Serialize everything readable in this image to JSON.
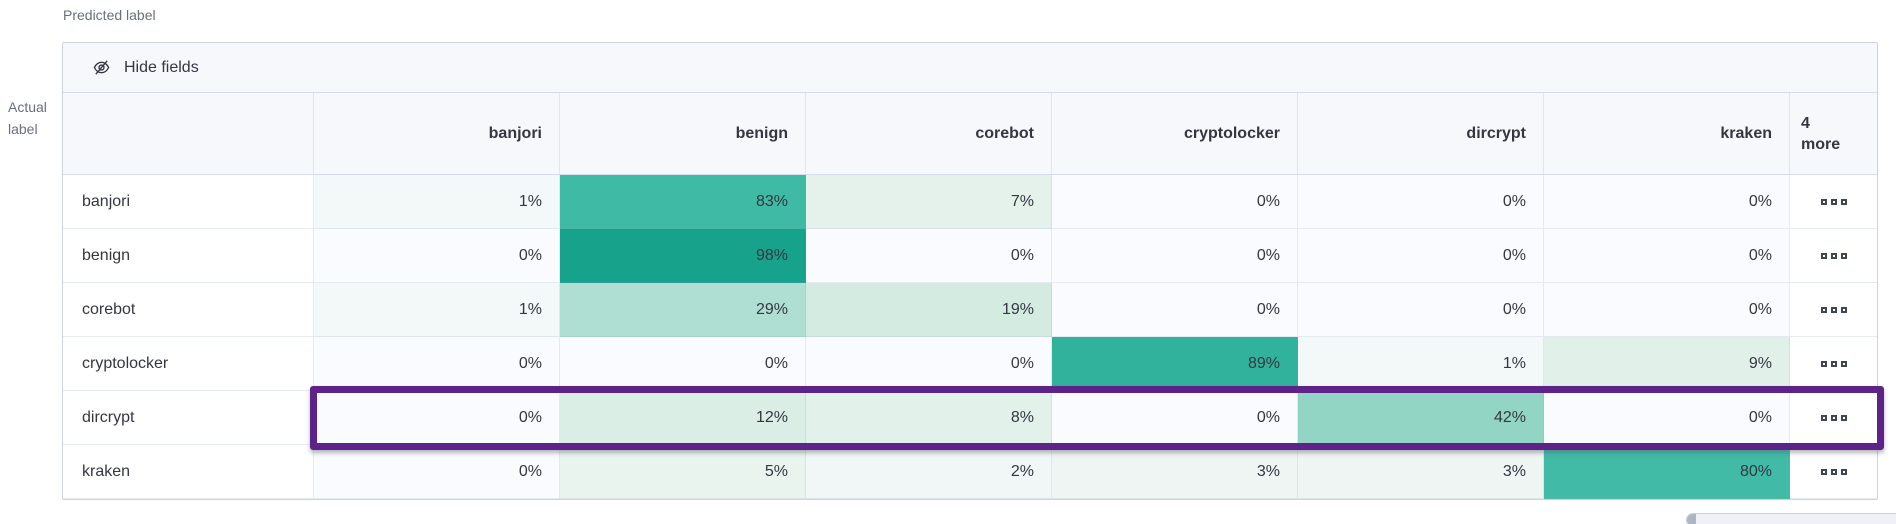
{
  "page": {
    "predicted_label": "Predicted label",
    "actual_label_line1": "Actual",
    "actual_label_line2": "label"
  },
  "toolbar": {
    "hide_fields_label": "Hide fields"
  },
  "matrix": {
    "columns": [
      "banjori",
      "benign",
      "corebot",
      "cryptolocker",
      "dircrypt",
      "kraken"
    ],
    "more_header": {
      "count": "4",
      "label": "more"
    },
    "rows": [
      {
        "label": "banjori",
        "values": [
          "1%",
          "83%",
          "7%",
          "0%",
          "0%",
          "0%"
        ],
        "colors": [
          "#f3f8f8",
          "#3fbaa5",
          "#e5f2ec",
          "#fafbfe",
          "#fafbfe",
          "#fafbfe"
        ]
      },
      {
        "label": "benign",
        "values": [
          "0%",
          "98%",
          "0%",
          "0%",
          "0%",
          "0%"
        ],
        "colors": [
          "#fafbfe",
          "#17a28c",
          "#fafbfe",
          "#fafbfe",
          "#fafbfe",
          "#fafbfe"
        ]
      },
      {
        "label": "corebot",
        "values": [
          "1%",
          "29%",
          "19%",
          "0%",
          "0%",
          "0%"
        ],
        "colors": [
          "#f3f8f8",
          "#afdfd2",
          "#d4ebe1",
          "#fafbfe",
          "#fafbfe",
          "#fafbfe"
        ]
      },
      {
        "label": "cryptolocker",
        "values": [
          "0%",
          "0%",
          "0%",
          "89%",
          "1%",
          "9%"
        ],
        "colors": [
          "#fafbfe",
          "#fafbfe",
          "#fafbfe",
          "#30b29c",
          "#f3f8f8",
          "#e1f1ea"
        ]
      },
      {
        "label": "dircrypt",
        "values": [
          "0%",
          "12%",
          "8%",
          "0%",
          "42%",
          "0%"
        ],
        "colors": [
          "#fafbfe",
          "#daeee6",
          "#e3f1eb",
          "#fafbfe",
          "#93d5c4",
          "#fafbfe"
        ],
        "highlighted": true
      },
      {
        "label": "kraken",
        "values": [
          "0%",
          "5%",
          "2%",
          "3%",
          "3%",
          "80%"
        ],
        "colors": [
          "#fafbfe",
          "#e9f4ef",
          "#f1f7f6",
          "#eef5f2",
          "#eef5f2",
          "#41bba6"
        ]
      }
    ]
  },
  "chart_data": {
    "type": "heatmap",
    "x_label": "Predicted label",
    "y_label": "Actual label",
    "x_categories": [
      "banjori",
      "benign",
      "corebot",
      "cryptolocker",
      "dircrypt",
      "kraken"
    ],
    "y_categories": [
      "banjori",
      "benign",
      "corebot",
      "cryptolocker",
      "dircrypt",
      "kraken"
    ],
    "values_percent": [
      [
        1,
        83,
        7,
        0,
        0,
        0
      ],
      [
        0,
        98,
        0,
        0,
        0,
        0
      ],
      [
        1,
        29,
        19,
        0,
        0,
        0
      ],
      [
        0,
        0,
        0,
        89,
        1,
        9
      ],
      [
        0,
        12,
        8,
        0,
        42,
        0
      ],
      [
        0,
        5,
        2,
        3,
        3,
        80
      ]
    ],
    "hidden_columns_more_count": 4,
    "highlighted_row": "dircrypt",
    "legend_position": "none",
    "grid": true
  },
  "colors": {
    "heat_max": "#17a28c",
    "heat_zero": "#fafbfe",
    "highlight_purple": "#5e2389",
    "header_bg": "#f6f8fc",
    "border_outer": "#cdd4e0",
    "border_inner": "#e6ebf3",
    "text_primary": "#343741",
    "text_secondary": "#69707d"
  }
}
